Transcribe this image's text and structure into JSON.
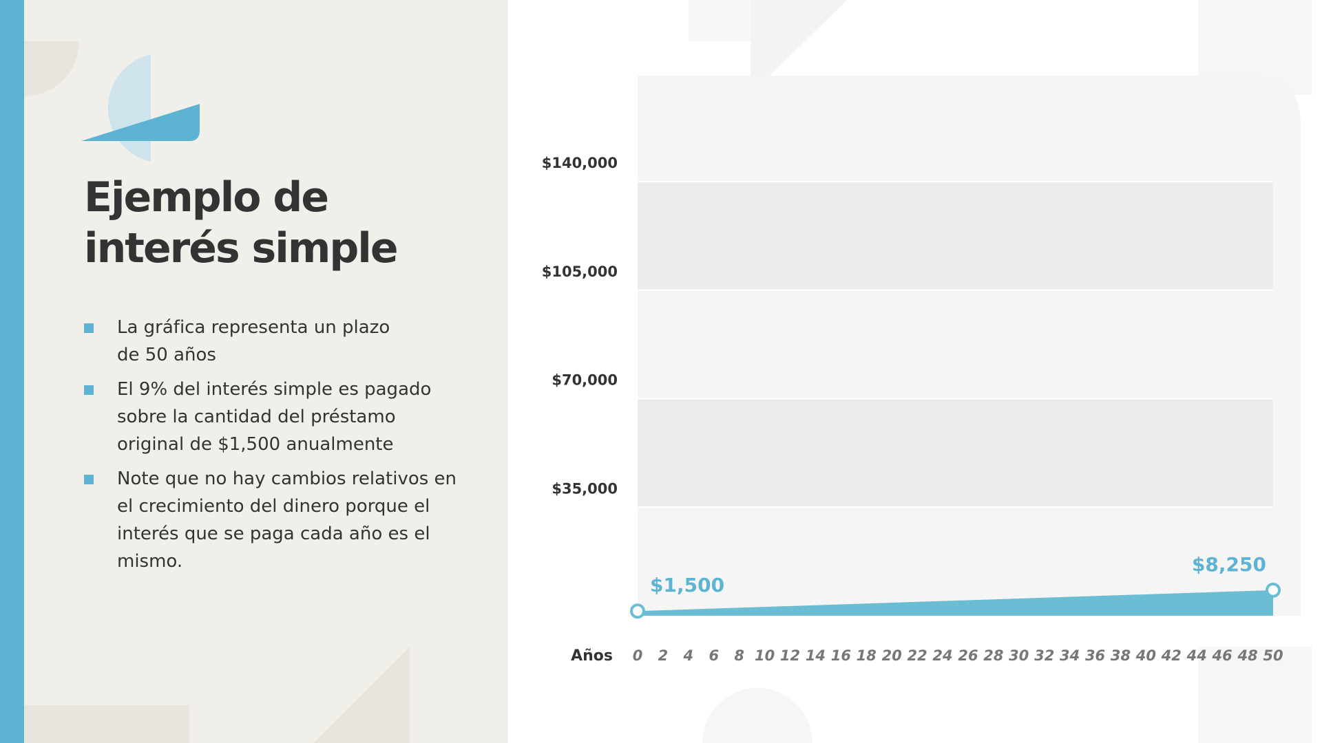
{
  "slide": {
    "title": [
      "Ejemplo de",
      "interés simple"
    ],
    "bullets": [
      [
        "La gráfica representa un plazo",
        "de 50 años"
      ],
      [
        "El 9% del interés simple es pagado",
        "sobre la cantidad del préstamo",
        "original de $1,500 anualmente"
      ],
      [
        "Note que no hay cambios relativos en",
        "el crecimiento del dinero porque el",
        "interés que se paga cada año es el",
        "mismo."
      ]
    ]
  },
  "chart_data": {
    "type": "area",
    "x_label": "Años",
    "x": [
      0,
      50
    ],
    "values": [
      1500,
      8250
    ],
    "value_labels": [
      "$1,500",
      "$8,250"
    ],
    "color": "#6bbdd3",
    "xlim": [
      0,
      50
    ],
    "xticks": [
      0,
      2,
      4,
      6,
      8,
      10,
      12,
      14,
      16,
      18,
      20,
      22,
      24,
      26,
      28,
      30,
      32,
      34,
      36,
      38,
      40,
      42,
      44,
      46,
      48,
      50
    ],
    "ylim": [
      0,
      140000
    ],
    "yticks": [
      {
        "value": 35000,
        "label": "$35,000"
      },
      {
        "value": 70000,
        "label": "$70,000"
      },
      {
        "value": 105000,
        "label": "$105,000"
      },
      {
        "value": 140000,
        "label": "$140,000"
      }
    ],
    "grid": true
  }
}
